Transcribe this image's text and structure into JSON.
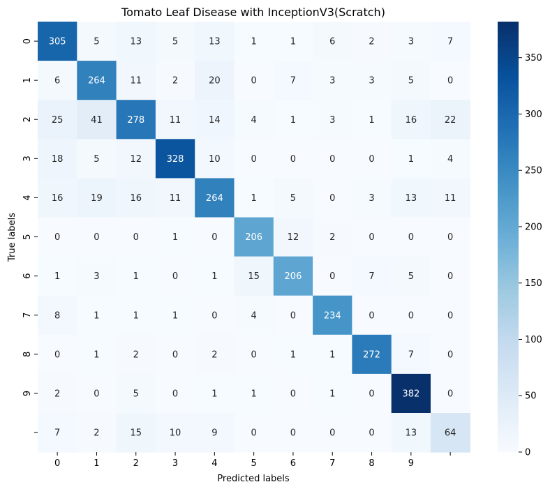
{
  "chart_data": {
    "type": "heatmap",
    "title": "Tomato Leaf Disease with InceptionV3(Scratch)",
    "xlabel": "Predicted labels",
    "ylabel": "True labels",
    "x_tick_labels": [
      "0",
      "1",
      "2",
      "3",
      "4",
      "5",
      "6",
      "7",
      "8",
      "9",
      ""
    ],
    "y_tick_labels": [
      "0",
      "1",
      "2",
      "3",
      "4",
      "5",
      "6",
      "7",
      "8",
      "9",
      ""
    ],
    "matrix": [
      [
        305,
        5,
        13,
        5,
        13,
        1,
        1,
        6,
        2,
        3,
        7
      ],
      [
        6,
        264,
        11,
        2,
        20,
        0,
        7,
        3,
        3,
        5,
        0
      ],
      [
        25,
        41,
        278,
        11,
        14,
        4,
        1,
        3,
        1,
        16,
        22
      ],
      [
        18,
        5,
        12,
        328,
        10,
        0,
        0,
        0,
        0,
        1,
        4
      ],
      [
        16,
        19,
        16,
        11,
        264,
        1,
        5,
        0,
        3,
        13,
        11
      ],
      [
        0,
        0,
        0,
        1,
        0,
        206,
        12,
        2,
        0,
        0,
        0
      ],
      [
        1,
        3,
        1,
        0,
        1,
        15,
        206,
        0,
        7,
        5,
        0
      ],
      [
        8,
        1,
        1,
        1,
        0,
        4,
        0,
        234,
        0,
        0,
        0
      ],
      [
        0,
        1,
        2,
        0,
        2,
        0,
        1,
        1,
        272,
        7,
        0
      ],
      [
        2,
        0,
        5,
        0,
        1,
        1,
        0,
        1,
        0,
        382,
        0
      ],
      [
        7,
        2,
        15,
        10,
        9,
        0,
        0,
        0,
        0,
        13,
        64
      ]
    ],
    "colorbar": {
      "colormap": "Blues",
      "vmin": 0,
      "vmax": 382,
      "ticks": [
        0,
        50,
        100,
        150,
        200,
        250,
        300,
        350
      ]
    },
    "colors": {
      "low": "#f7fbff",
      "high": "#08306b",
      "text_dark": "#262626",
      "text_light": "#ffffff"
    }
  }
}
